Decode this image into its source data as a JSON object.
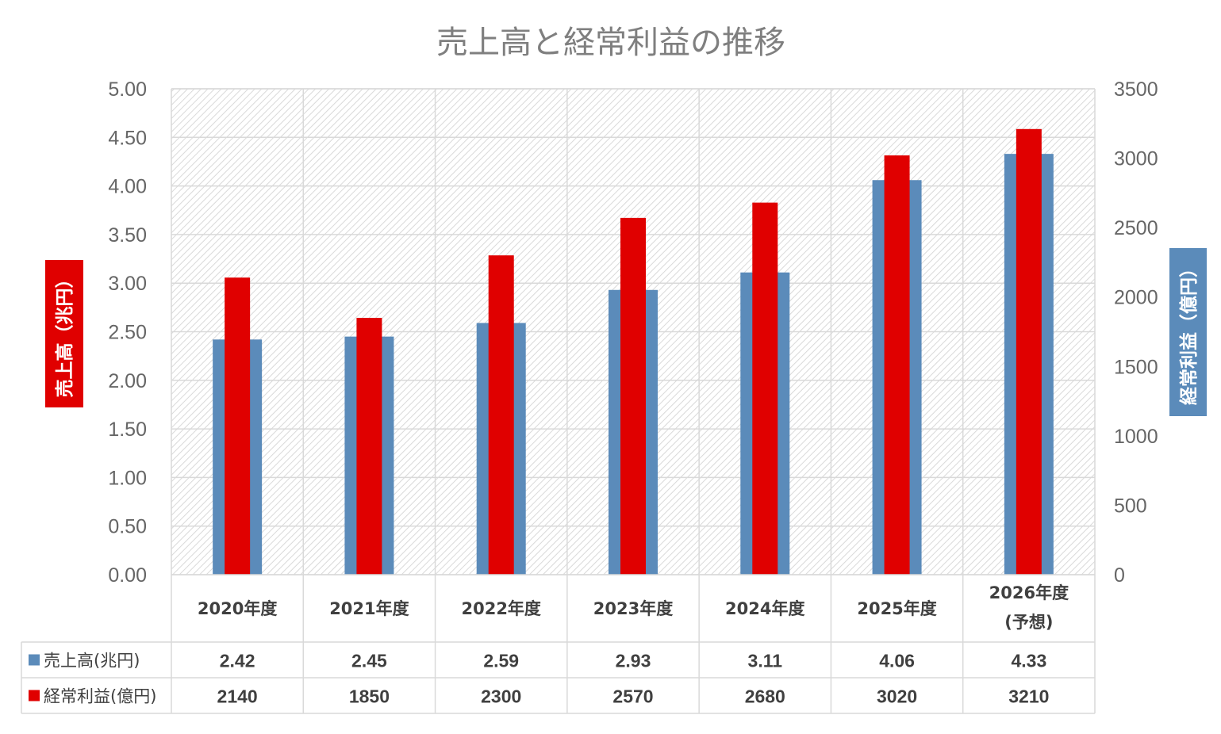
{
  "chart_data": {
    "type": "bar",
    "title": "売上高と経常利益の推移",
    "categories": [
      [
        "2020年度"
      ],
      [
        "2021年度"
      ],
      [
        "2022年度"
      ],
      [
        "2023年度"
      ],
      [
        "2024年度"
      ],
      [
        "2025年度"
      ],
      [
        "2026年度",
        "(予想)"
      ]
    ],
    "series": [
      {
        "name": "売上高(兆円)",
        "axis": "left",
        "color": "#5b8bba",
        "values": [
          2.42,
          2.45,
          2.59,
          2.93,
          3.11,
          4.06,
          4.33
        ]
      },
      {
        "name": "経常利益(億円)",
        "axis": "right",
        "color": "#e00000",
        "values": [
          2140,
          1850,
          2300,
          2570,
          2680,
          3020,
          3210
        ]
      }
    ],
    "y_left": {
      "label": "売上高（兆円）",
      "range": [
        0,
        5
      ],
      "ticks": [
        "0.00",
        "0.50",
        "1.00",
        "1.50",
        "2.00",
        "2.50",
        "3.00",
        "3.50",
        "4.00",
        "4.50",
        "5.00"
      ],
      "label_bg": "#e00000"
    },
    "y_right": {
      "label": "経常利益（億円）",
      "range": [
        0,
        3500
      ],
      "ticks": [
        "0",
        "500",
        "1000",
        "1500",
        "2000",
        "2500",
        "3000",
        "3500"
      ],
      "label_bg": "#5b8bba"
    },
    "grid": true,
    "legend": "data-table",
    "data_table": {
      "rows": [
        {
          "label": "売上高(兆円)",
          "values": [
            "2.42",
            "2.45",
            "2.59",
            "2.93",
            "3.11",
            "4.06",
            "4.33"
          ]
        },
        {
          "label": "経常利益(億円)",
          "values": [
            "2140",
            "1850",
            "2300",
            "2570",
            "2680",
            "3020",
            "3210"
          ]
        }
      ]
    }
  }
}
